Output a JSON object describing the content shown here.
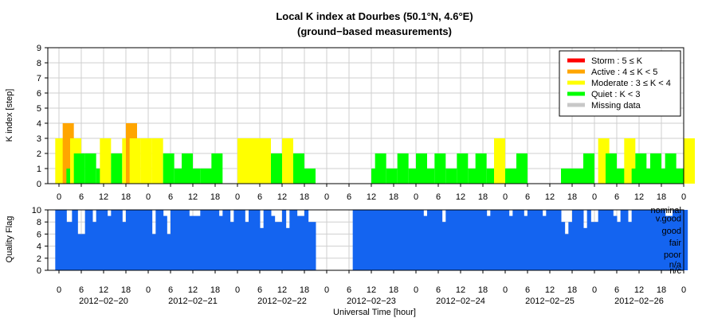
{
  "chart_data": [
    {
      "type": "bar",
      "title": "Local K index at Dourbes (50.1°N, 4.6°E)",
      "subtitle": "(ground−based measurements)",
      "ylabel": "K index [step]",
      "ylim": [
        0,
        9
      ],
      "yticks": [
        0,
        1,
        2,
        3,
        4,
        5,
        6,
        7,
        8,
        9
      ],
      "xlim_hours": [
        -3,
        168
      ],
      "xtick_hours": [
        0,
        6,
        12,
        18,
        24,
        30,
        36,
        42,
        48,
        54,
        60,
        66,
        72,
        78,
        84,
        90,
        96,
        102,
        108,
        114,
        120,
        126,
        132,
        138,
        144,
        150,
        156,
        162,
        168
      ],
      "xtick_labels": [
        "0",
        "6",
        "12",
        "18",
        "0",
        "6",
        "12",
        "18",
        "0",
        "6",
        "12",
        "18",
        "0",
        "6",
        "12",
        "18",
        "0",
        "6",
        "12",
        "18",
        "0",
        "6",
        "12",
        "18",
        "0",
        "6",
        "12",
        "18",
        "0"
      ],
      "bar_width_hours": 3,
      "levels": [
        {
          "name": "Storm : 5 ≤ K",
          "color": "#ff0000"
        },
        {
          "name": "Active : 4 ≤ K < 5",
          "color": "#ffa500"
        },
        {
          "name": "Moderate : 3 ≤ K < 4",
          "color": "#ffff00"
        },
        {
          "name": "Quiet : K < 3",
          "color": "#00ff00"
        },
        {
          "name": "Missing data",
          "color": "#c8c8c8"
        }
      ],
      "legend_position": "top-right",
      "grid": true,
      "bars": [
        {
          "start": -1,
          "k": 3
        },
        {
          "start": 1,
          "k": 4
        },
        {
          "start": 2,
          "k": 1
        },
        {
          "start": 3,
          "k": 3
        },
        {
          "start": 4,
          "k": 2
        },
        {
          "start": 7,
          "k": 2
        },
        {
          "start": 10,
          "k": 1
        },
        {
          "start": 11,
          "k": 3
        },
        {
          "start": 14,
          "k": 2
        },
        {
          "start": 17,
          "k": 3
        },
        {
          "start": 18,
          "k": 4
        },
        {
          "start": 19,
          "k": 3
        },
        {
          "start": 22,
          "k": 3
        },
        {
          "start": 25,
          "k": 3
        },
        {
          "start": 28,
          "k": 2
        },
        {
          "start": 31,
          "k": 1
        },
        {
          "start": 33,
          "k": 2
        },
        {
          "start": 35,
          "k": 1
        },
        {
          "start": 38,
          "k": 1
        },
        {
          "start": 40,
          "k": 1
        },
        {
          "start": 41,
          "k": 2
        },
        {
          "start": 48,
          "k": 3
        },
        {
          "start": 51,
          "k": 3
        },
        {
          "start": 54,
          "k": 3
        },
        {
          "start": 57,
          "k": 2
        },
        {
          "start": 59,
          "k": 1
        },
        {
          "start": 60,
          "k": 3
        },
        {
          "start": 63,
          "k": 2
        },
        {
          "start": 66,
          "k": 1
        },
        {
          "start": 84,
          "k": 1
        },
        {
          "start": 85,
          "k": 2
        },
        {
          "start": 88,
          "k": 1
        },
        {
          "start": 91,
          "k": 2
        },
        {
          "start": 94,
          "k": 1
        },
        {
          "start": 96,
          "k": 2
        },
        {
          "start": 98,
          "k": 1
        },
        {
          "start": 101,
          "k": 2
        },
        {
          "start": 104,
          "k": 1
        },
        {
          "start": 107,
          "k": 2
        },
        {
          "start": 110,
          "k": 1
        },
        {
          "start": 112,
          "k": 2
        },
        {
          "start": 115,
          "k": 1
        },
        {
          "start": 117,
          "k": 3
        },
        {
          "start": 120,
          "k": 1
        },
        {
          "start": 123,
          "k": 2
        },
        {
          "start": 135,
          "k": 1
        },
        {
          "start": 138,
          "k": 1
        },
        {
          "start": 141,
          "k": 2
        },
        {
          "start": 145,
          "k": 3
        },
        {
          "start": 147,
          "k": 2
        },
        {
          "start": 150,
          "k": 1
        },
        {
          "start": 152,
          "k": 3
        },
        {
          "start": 154,
          "k": 1
        },
        {
          "start": 155,
          "k": 2
        },
        {
          "start": 157,
          "k": 1
        },
        {
          "start": 159,
          "k": 2
        },
        {
          "start": 161,
          "k": 1
        },
        {
          "start": 163,
          "k": 2
        },
        {
          "start": 165,
          "k": 1
        },
        {
          "start": 168,
          "k": 3
        }
      ]
    },
    {
      "type": "area",
      "ylabel": "Quality Flag",
      "xlabel": "Universal Time [hour]",
      "ylim": [
        0,
        10
      ],
      "yticks": [
        0,
        2,
        4,
        6,
        8,
        10
      ],
      "color": "#1464f0",
      "day_labels": [
        "2012−02−20",
        "2012−02−21",
        "2012−02−22",
        "2012−02−23",
        "2012−02−24",
        "2012−02−25",
        "2012−02−26"
      ],
      "day_label_hours": [
        12,
        36,
        60,
        84,
        108,
        132,
        156
      ],
      "quality_labels": [
        {
          "text": "nominal",
          "value": 10
        },
        {
          "text": "v.good",
          "value": 8.6
        },
        {
          "text": "good",
          "value": 6.6
        },
        {
          "text": "fair",
          "value": 4.6
        },
        {
          "text": "poor",
          "value": 2.6
        },
        {
          "text": "n/a",
          "value": 1.0
        },
        {
          "text": "n/c",
          "value": 0
        }
      ],
      "segments": [
        {
          "start": -1,
          "end": 2,
          "q": 10
        },
        {
          "start": 2,
          "end": 3.5,
          "q": 8
        },
        {
          "start": 3.5,
          "end": 5,
          "q": 10
        },
        {
          "start": 5,
          "end": 7,
          "q": 6
        },
        {
          "start": 7,
          "end": 9,
          "q": 10
        },
        {
          "start": 9,
          "end": 10,
          "q": 8
        },
        {
          "start": 10,
          "end": 13,
          "q": 10
        },
        {
          "start": 13,
          "end": 14,
          "q": 9
        },
        {
          "start": 14,
          "end": 17,
          "q": 10
        },
        {
          "start": 17,
          "end": 18,
          "q": 8
        },
        {
          "start": 18,
          "end": 25,
          "q": 10
        },
        {
          "start": 25,
          "end": 26,
          "q": 6
        },
        {
          "start": 26,
          "end": 28,
          "q": 10
        },
        {
          "start": 28,
          "end": 29,
          "q": 9
        },
        {
          "start": 29,
          "end": 30,
          "q": 6
        },
        {
          "start": 30,
          "end": 35,
          "q": 10
        },
        {
          "start": 35,
          "end": 38,
          "q": 9
        },
        {
          "start": 38,
          "end": 43,
          "q": 10
        },
        {
          "start": 43,
          "end": 44,
          "q": 9
        },
        {
          "start": 44,
          "end": 46,
          "q": 10
        },
        {
          "start": 46,
          "end": 47,
          "q": 8
        },
        {
          "start": 47,
          "end": 50,
          "q": 10
        },
        {
          "start": 50,
          "end": 51,
          "q": 8
        },
        {
          "start": 51,
          "end": 54,
          "q": 10
        },
        {
          "start": 54,
          "end": 55,
          "q": 7
        },
        {
          "start": 55,
          "end": 57,
          "q": 10
        },
        {
          "start": 57,
          "end": 58,
          "q": 9
        },
        {
          "start": 58,
          "end": 60,
          "q": 8
        },
        {
          "start": 60,
          "end": 61,
          "q": 10
        },
        {
          "start": 61,
          "end": 62,
          "q": 7
        },
        {
          "start": 62,
          "end": 64,
          "q": 10
        },
        {
          "start": 64,
          "end": 66,
          "q": 9
        },
        {
          "start": 66,
          "end": 67,
          "q": 10
        },
        {
          "start": 67,
          "end": 69,
          "q": 8
        },
        {
          "start": 69,
          "end": 70,
          "q": 0
        },
        {
          "start": 70,
          "end": 79,
          "q": 0
        },
        {
          "start": 79,
          "end": 98,
          "q": 10
        },
        {
          "start": 98,
          "end": 99,
          "q": 9
        },
        {
          "start": 99,
          "end": 103,
          "q": 10
        },
        {
          "start": 103,
          "end": 104,
          "q": 8
        },
        {
          "start": 104,
          "end": 115,
          "q": 10
        },
        {
          "start": 115,
          "end": 116,
          "q": 9
        },
        {
          "start": 116,
          "end": 121,
          "q": 10
        },
        {
          "start": 121,
          "end": 122,
          "q": 9
        },
        {
          "start": 122,
          "end": 125,
          "q": 10
        },
        {
          "start": 125,
          "end": 126,
          "q": 9
        },
        {
          "start": 126,
          "end": 130,
          "q": 10
        },
        {
          "start": 130,
          "end": 131,
          "q": 9
        },
        {
          "start": 131,
          "end": 135,
          "q": 10
        },
        {
          "start": 135,
          "end": 136,
          "q": 8
        },
        {
          "start": 136,
          "end": 137,
          "q": 6
        },
        {
          "start": 137,
          "end": 138,
          "q": 8
        },
        {
          "start": 138,
          "end": 141,
          "q": 10
        },
        {
          "start": 141,
          "end": 142,
          "q": 7
        },
        {
          "start": 142,
          "end": 143,
          "q": 10
        },
        {
          "start": 143,
          "end": 145,
          "q": 8
        },
        {
          "start": 145,
          "end": 149,
          "q": 10
        },
        {
          "start": 149,
          "end": 150,
          "q": 9
        },
        {
          "start": 150,
          "end": 151,
          "q": 8
        },
        {
          "start": 151,
          "end": 153,
          "q": 10
        },
        {
          "start": 153,
          "end": 154,
          "q": 8
        },
        {
          "start": 154,
          "end": 163,
          "q": 10
        },
        {
          "start": 163,
          "end": 165,
          "q": 9
        },
        {
          "start": 165,
          "end": 169,
          "q": 10
        }
      ]
    }
  ]
}
